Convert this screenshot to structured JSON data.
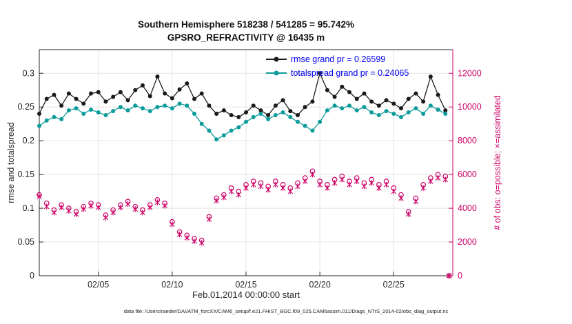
{
  "figure": {
    "title_line1": "Southern Hemisphere 518238 / 541285 = 95.742%",
    "title_line2": "GPSRO_REFRACTIVITY @ 16435 m",
    "xlabel": "Feb.01,2014 00:00:00 start",
    "ylabel_left": "rmse and totalspread",
    "ylabel_right": "# of obs: o=possible; ×=assimilated",
    "caption": "data file: /Users/raeder/DAI/ATM_forcXX/CAM6_setup/f.e21.FHIST_BGC.f09_025.CAM6assim.011/Diags_NTrS_2014-02/obs_diag_output.nc",
    "colors": {
      "rmse": "#1a1a1a",
      "totalspread": "#0b9b9b",
      "obs": "#cc0066",
      "legend_text": "#0000ee",
      "axis": "#262626",
      "grid": "#e4e4e4"
    }
  },
  "legend": [
    {
      "label": "rmse grand pr = 0.26599",
      "series": "rmse"
    },
    {
      "label": "totalspread grand pr = 0.24065",
      "series": "totalspread"
    }
  ],
  "chart_data": {
    "type": "line",
    "title": "Southern Hemisphere 518238 / 541285 = 95.742% — GPSRO_REFRACTIVITY @ 16435 m",
    "xlabel": "Feb.01,2014 00:00:00 start",
    "ylabel_left": "rmse and totalspread",
    "ylabel_right": "# of obs: o=possible; ×=assimilated",
    "legend_position": "top-center-inside",
    "grid": true,
    "x_unit": "days since Feb 01, 2014 00:00",
    "xlim": [
      0,
      28
    ],
    "xticks": [
      {
        "pos": 4,
        "label": "02/05"
      },
      {
        "pos": 9,
        "label": "02/10"
      },
      {
        "pos": 14,
        "label": "02/15"
      },
      {
        "pos": 19,
        "label": "02/20"
      },
      {
        "pos": 24,
        "label": "02/25"
      }
    ],
    "ylim_left": [
      0,
      0.335
    ],
    "yticks_left": [
      {
        "value": 0,
        "label": "0"
      },
      {
        "value": 0.05,
        "label": "0.05"
      },
      {
        "value": 0.1,
        "label": "0.1"
      },
      {
        "value": 0.15,
        "label": "0.15"
      },
      {
        "value": 0.2,
        "label": "0.2"
      },
      {
        "value": 0.25,
        "label": "0.25"
      },
      {
        "value": 0.3,
        "label": "0.3"
      }
    ],
    "ylim_right": [
      0,
      13400
    ],
    "yticks_right": [
      {
        "value": 0,
        "label": "0"
      },
      {
        "value": 2000,
        "label": "2000"
      },
      {
        "value": 4000,
        "label": "4000"
      },
      {
        "value": 6000,
        "label": "6000"
      },
      {
        "value": 8000,
        "label": "8000"
      },
      {
        "value": 10000,
        "label": "10000"
      },
      {
        "value": 12000,
        "label": "12000"
      }
    ],
    "x": [
      0,
      0.5,
      1,
      1.5,
      2,
      2.5,
      3,
      3.5,
      4,
      4.5,
      5,
      5.5,
      6,
      6.5,
      7,
      7.5,
      8,
      8.5,
      9,
      9.5,
      10,
      10.5,
      11,
      11.5,
      12,
      12.5,
      13,
      13.5,
      14,
      14.5,
      15,
      15.5,
      16,
      16.5,
      17,
      17.5,
      18,
      18.5,
      19,
      19.5,
      20,
      20.5,
      21,
      21.5,
      22,
      22.5,
      23,
      23.5,
      24,
      24.5,
      25,
      25.5,
      26,
      26.5,
      27,
      27.5,
      27.75
    ],
    "series": [
      {
        "name": "rmse",
        "grand_mean": 0.26599,
        "axis": "left",
        "marker": "dot",
        "line": true,
        "color_key": "rmse",
        "values": [
          0.24,
          0.262,
          0.268,
          0.252,
          0.27,
          0.262,
          0.255,
          0.27,
          0.272,
          0.258,
          0.265,
          0.272,
          0.26,
          0.275,
          0.282,
          0.266,
          0.295,
          0.27,
          0.263,
          0.276,
          0.285,
          0.262,
          0.27,
          0.252,
          0.24,
          0.245,
          0.238,
          0.235,
          0.242,
          0.252,
          0.245,
          0.238,
          0.252,
          0.26,
          0.244,
          0.238,
          0.25,
          0.258,
          0.3,
          0.275,
          0.265,
          0.28,
          0.272,
          0.262,
          0.27,
          0.258,
          0.252,
          0.26,
          0.255,
          0.248,
          0.262,
          0.27,
          0.258,
          0.295,
          0.268,
          0.245,
          null
        ]
      },
      {
        "name": "totalspread",
        "grand_mean": 0.24065,
        "axis": "left",
        "marker": "dot",
        "line": true,
        "color_key": "totalspread",
        "values": [
          0.222,
          0.23,
          0.235,
          0.232,
          0.245,
          0.248,
          0.24,
          0.246,
          0.242,
          0.238,
          0.244,
          0.25,
          0.245,
          0.252,
          0.248,
          0.244,
          0.25,
          0.252,
          0.248,
          0.255,
          0.252,
          0.24,
          0.225,
          0.215,
          0.202,
          0.208,
          0.215,
          0.22,
          0.228,
          0.235,
          0.24,
          0.232,
          0.238,
          0.242,
          0.235,
          0.228,
          0.222,
          0.215,
          0.228,
          0.245,
          0.252,
          0.248,
          0.252,
          0.245,
          0.25,
          0.242,
          0.238,
          0.244,
          0.24,
          0.235,
          0.242,
          0.248,
          0.24,
          0.252,
          0.246,
          0.24,
          null
        ]
      },
      {
        "name": "obs_possible",
        "axis": "right",
        "marker": "circle",
        "line": false,
        "color_key": "obs",
        "values": [
          4800,
          4300,
          3900,
          4200,
          4000,
          3800,
          4100,
          4300,
          4200,
          3600,
          3900,
          4200,
          4400,
          4100,
          3900,
          4200,
          4500,
          4300,
          3200,
          2600,
          2400,
          2200,
          2100,
          3500,
          4600,
          4800,
          5200,
          5000,
          5400,
          5600,
          5500,
          5300,
          5600,
          5400,
          5200,
          5500,
          5800,
          6200,
          5600,
          5400,
          5700,
          5900,
          5600,
          5800,
          5500,
          5700,
          5400,
          5600,
          5200,
          4800,
          3800,
          4600,
          5400,
          5800,
          6000,
          5900,
          0
        ]
      },
      {
        "name": "obs_assimilated",
        "axis": "right",
        "marker": "asterisk",
        "line": false,
        "color_key": "obs",
        "values": [
          4700,
          4100,
          3750,
          4050,
          3850,
          3650,
          3950,
          4150,
          4050,
          3450,
          3750,
          4050,
          4250,
          3950,
          3750,
          4050,
          4350,
          4150,
          3050,
          2450,
          2250,
          2050,
          1950,
          3350,
          4450,
          4650,
          5000,
          4800,
          5200,
          5400,
          5300,
          5100,
          5400,
          5200,
          5000,
          5300,
          5600,
          6000,
          5400,
          5200,
          5500,
          5700,
          5400,
          5600,
          5300,
          5500,
          5200,
          5400,
          5000,
          4600,
          3650,
          4400,
          5200,
          5600,
          5800,
          5700,
          0
        ]
      }
    ]
  }
}
